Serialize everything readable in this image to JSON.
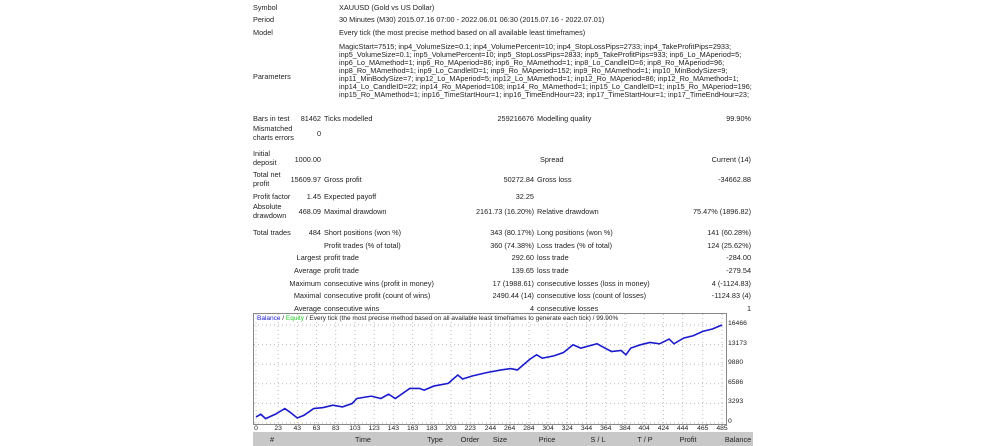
{
  "report": {
    "symbol": {
      "label": "Symbol",
      "value": "XAUUSD (Gold vs US Dollar)"
    },
    "period": {
      "label": "Period",
      "value": "30 Minutes (M30) 2015.07.16 07:00 - 2022.06.01 06:30 (2015.07.16 - 2022.07.01)"
    },
    "model": {
      "label": "Model",
      "value": "Every tick (the most precise method based on all available least timeframes)"
    },
    "parameters": {
      "label": "Parameters",
      "value": "MagicStart=7515; inp4_VolumeSize=0.1; inp4_VolumePercent=10; inp4_StopLossPips=2733; inp4_TakeProfitPips=2933; inp5_VolumeSize=0.1; inp5_VolumePercent=10; inp5_StopLossPips=2833; inp5_TakeProfitPips=933; inp6_Lo_MAperiod=5; inp6_Lo_MAmethod=1; inp6_Ro_MAperiod=86; inp6_Ro_MAmethod=1; inp8_Lo_CandleID=6; inp8_Ro_MAperiod=96; inp8_Ro_MAmethod=1; inp9_Lo_CandleID=1; inp9_Ro_MAperiod=152; inp9_Ro_MAmethod=1; inp10_MinBodySize=9; inp11_MinBodySize=7; inp12_Lo_MAperiod=5; inp12_Lo_MAmethod=1; inp12_Ro_MAperiod=86; inp12_Ro_MAmethod=1; inp14_Lo_CandleID=22; inp14_Ro_MAperiod=108; inp14_Ro_MAmethod=1; inp15_Lo_CandleID=1; inp15_Ro_MAperiod=196; inp15_Ro_MAmethod=1; inp16_TimeStartHour=1; inp16_TimeEndHour=23; inp17_TimeStartHour=1; inp17_TimeEndHour=23;"
    },
    "bars_in_test": {
      "label": "Bars in test",
      "value": "81462"
    },
    "ticks_modelled": {
      "label": "Ticks modelled",
      "value": "259216676"
    },
    "modelling_quality": {
      "label": "Modelling quality",
      "value": "99.90%"
    },
    "mismatched": {
      "label1": "Mismatched",
      "label2": "charts errors",
      "value": "0"
    },
    "initial_deposit": {
      "label1": "Initial",
      "label2": "deposit",
      "value": "1000.00"
    },
    "spread": {
      "label": "Spread",
      "value": "Current (14)"
    },
    "total_net_profit": {
      "label1": "Total net",
      "label2": "profit",
      "value": "15609.97"
    },
    "gross_profit": {
      "label": "Gross profit",
      "value": "50272.84"
    },
    "gross_loss": {
      "label": "Gross loss",
      "value": "-34662.88"
    },
    "profit_factor": {
      "label": "Profit factor",
      "value": "1.45"
    },
    "expected_payoff": {
      "label": "Expected payoff",
      "value": "32.25"
    },
    "absolute_drawdown": {
      "label1": "Absolute",
      "label2": "drawdown",
      "value": "468.09"
    },
    "maximal_drawdown": {
      "label": "Maximal drawdown",
      "value": "2161.73 (16.20%)"
    },
    "relative_drawdown": {
      "label": "Relative drawdown",
      "value": "75.47% (1896.82)"
    },
    "total_trades": {
      "label": "Total trades",
      "value": "484"
    },
    "short_positions": {
      "label": "Short positions (won %)",
      "value": "343 (80.17%)"
    },
    "long_positions": {
      "label": "Long positions (won %)",
      "value": "141 (60.28%)"
    },
    "profit_trades": {
      "label": "Profit trades (% of total)",
      "value": "360 (74.38%)"
    },
    "loss_trades": {
      "label": "Loss trades (% of total)",
      "value": "124 (25.62%)"
    },
    "largest": {
      "label": "Largest",
      "profit_label": "profit trade",
      "profit": "292.60",
      "loss_label": "loss trade",
      "loss": "-284.00"
    },
    "average": {
      "label": "Average",
      "profit_label": "profit trade",
      "profit": "139.65",
      "loss_label": "loss trade",
      "loss": "-279.54"
    },
    "maximum": {
      "label": "Maximum",
      "wins_label": "consecutive wins (profit in money)",
      "wins": "17 (1988.61)",
      "losses_label": "consecutive losses (loss in money)",
      "losses": "4 (-1124.83)"
    },
    "maximal": {
      "label": "Maximal",
      "profit_label": "consecutive profit (count of wins)",
      "profit": "2490.44 (14)",
      "loss_label": "consecutive loss (count of losses)",
      "loss": "-1124.83 (4)"
    },
    "average_consec": {
      "label": "Average",
      "wins_label": "consecutive wins",
      "wins": "4",
      "losses_label": "consecutive losses",
      "losses": "1"
    }
  },
  "chart_data": {
    "type": "line",
    "legend": {
      "balance": "Balance",
      "sep1": " / ",
      "equity": "Equity",
      "rest": " / Every tick (the most precise method based on all available least timeframes to generate each tick) / 99.90%"
    },
    "colors": {
      "balance": "#1a1acc",
      "equity": "#22cc22"
    },
    "yticks": [
      "16466",
      "13173",
      "9880",
      "6586",
      "3293",
      "0"
    ],
    "ylim": [
      0,
      16466
    ],
    "xticks": [
      "0",
      "23",
      "43",
      "63",
      "83",
      "103",
      "123",
      "143",
      "163",
      "183",
      "203",
      "223",
      "244",
      "264",
      "284",
      "304",
      "324",
      "344",
      "364",
      "384",
      "404",
      "424",
      "444",
      "465",
      "485"
    ],
    "xlim": [
      0,
      485
    ],
    "series": [
      {
        "name": "Balance",
        "x": [
          0,
          5,
          10,
          20,
          30,
          35,
          43,
          50,
          60,
          70,
          80,
          90,
          100,
          105,
          120,
          130,
          138,
          145,
          160,
          170,
          175,
          185,
          200,
          210,
          215,
          225,
          240,
          255,
          265,
          272,
          285,
          292,
          298,
          310,
          320,
          330,
          338,
          355,
          360,
          370,
          380,
          385,
          390,
          400,
          410,
          420,
          430,
          435,
          445,
          455,
          465,
          475,
          485
        ],
        "y": [
          1015,
          1466,
          733,
          1466,
          2425,
          1861,
          846,
          1297,
          2425,
          2594,
          2989,
          2707,
          3271,
          4117,
          4512,
          4117,
          4850,
          4117,
          5809,
          5809,
          5527,
          6204,
          6655,
          8065,
          7389,
          7896,
          8460,
          8911,
          9137,
          8911,
          10716,
          11449,
          10885,
          11280,
          11844,
          13141,
          12577,
          13310,
          12859,
          12013,
          12182,
          11449,
          12577,
          13141,
          13536,
          13310,
          14100,
          13310,
          14269,
          14664,
          15397,
          15792,
          16466
        ]
      }
    ]
  },
  "table_header": [
    "#",
    "Time",
    "Type",
    "Order",
    "Size",
    "Price",
    "S / L",
    "T / P",
    "Profit",
    "Balance"
  ]
}
